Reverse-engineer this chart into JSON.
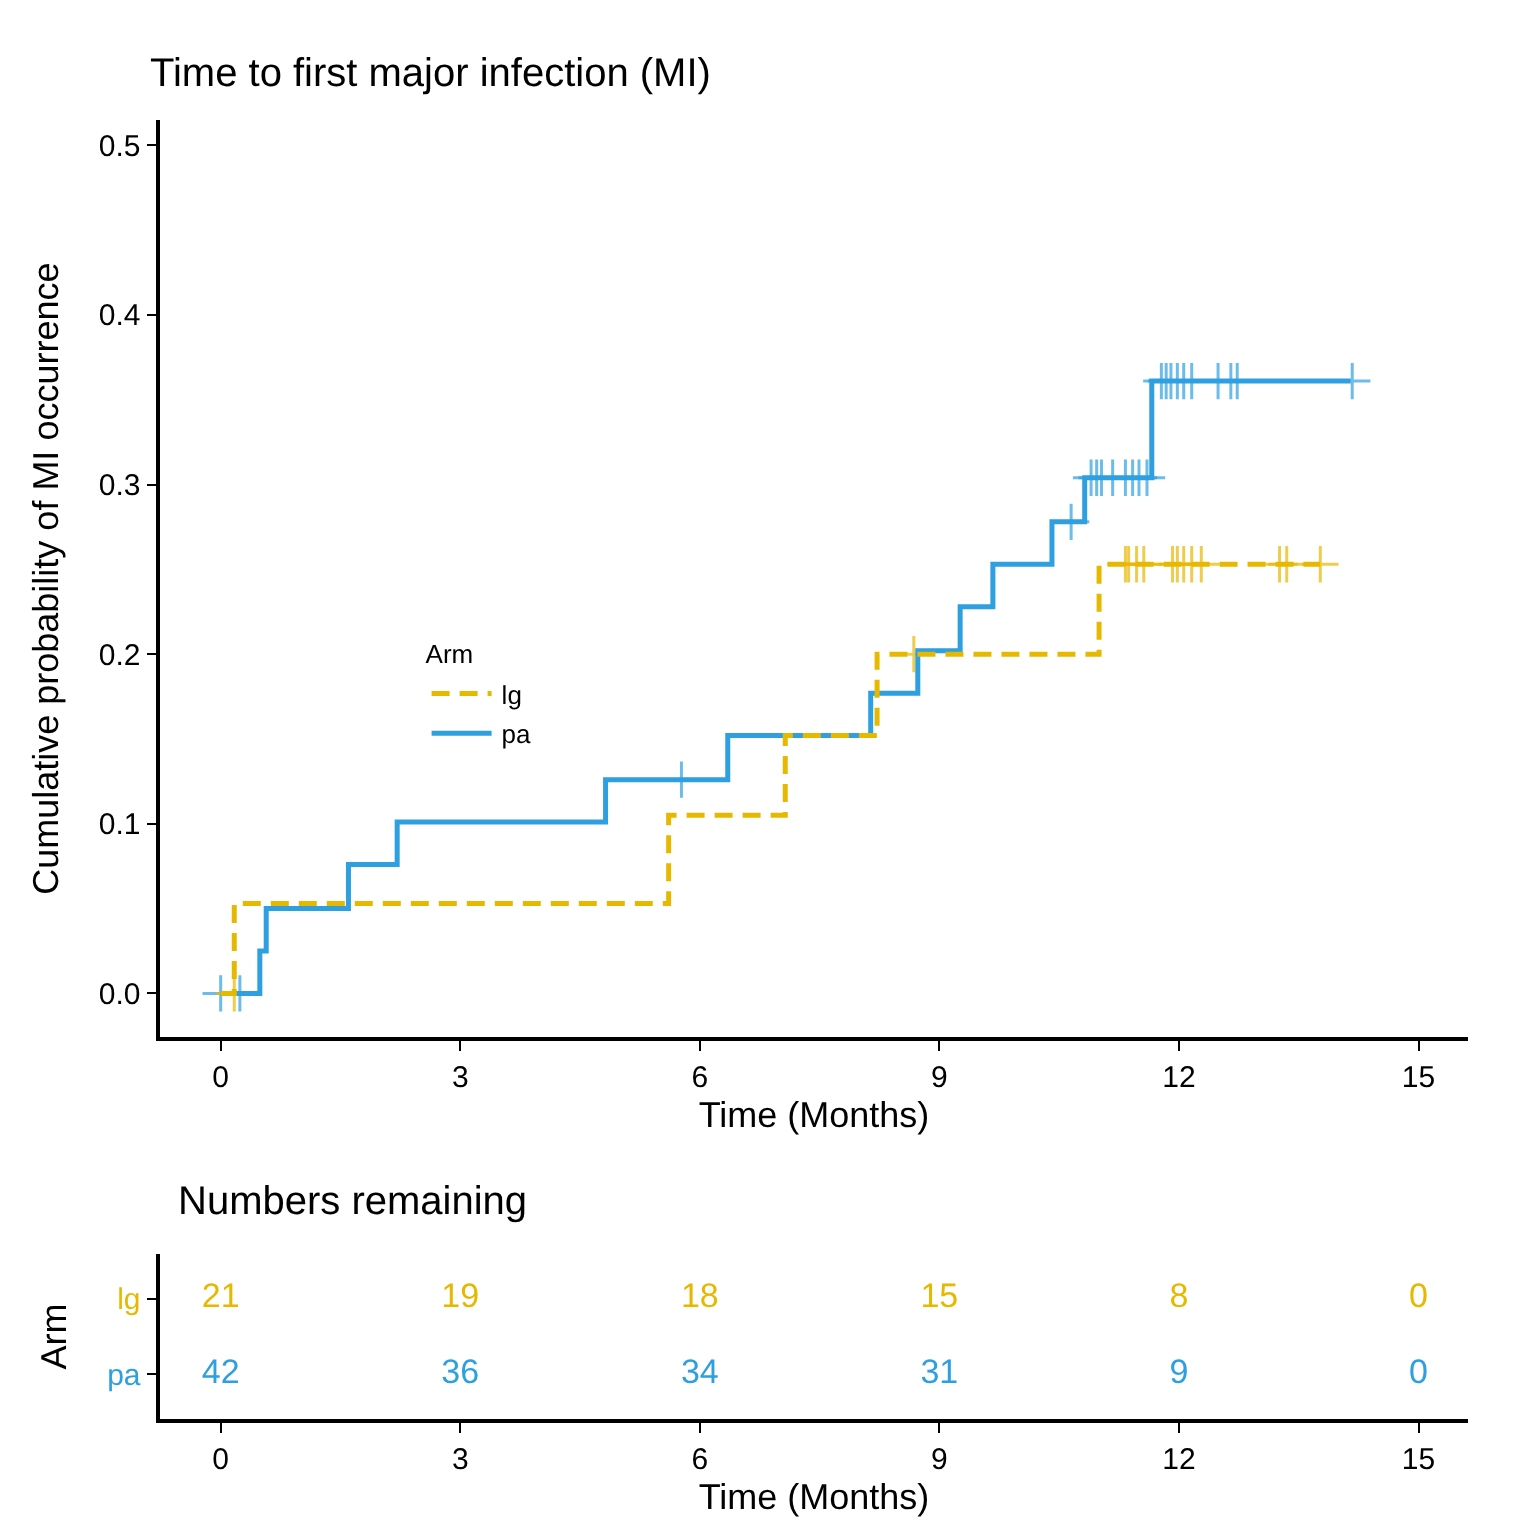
{
  "chart_data": [
    {
      "type": "step",
      "title": "Time to first major infection (MI)",
      "xlabel": "Time (Months)",
      "ylabel": "Cumulative probability of MI occurrence",
      "legend": "left",
      "legend_title": "Arm",
      "xlim": [
        -0.76,
        15.62
      ],
      "xticks": [
        0,
        3,
        6,
        9,
        12,
        15
      ],
      "ylim": [
        -0.026,
        0.515
      ],
      "yticks": [
        {
          "value": 0,
          "label": "0.0"
        },
        0.1,
        0.2,
        0.3,
        0.4,
        0.5
      ],
      "series": [
        {
          "name": "lg",
          "color": "#e7b800",
          "line_style": "dashed",
          "x": [
            0,
            0.17,
            5.61,
            7.07,
            8.22,
            11.0,
            13.77
          ],
          "values": [
            0,
            0.053,
            0.105,
            0.152,
            0.2,
            0.253,
            0.253
          ]
        },
        {
          "name": "pa",
          "color": "#2e9fdf",
          "line_style": "solid",
          "x": [
            0,
            0.49,
            0.57,
            1.6,
            2.21,
            4.82,
            6.35,
            8.14,
            8.73,
            9.26,
            9.67,
            10.41,
            10.82,
            11.66,
            14.15
          ],
          "values": [
            0,
            0.025,
            0.05,
            0.076,
            0.101,
            0.126,
            0.152,
            0.177,
            0.202,
            0.228,
            0.253,
            0.278,
            0.304,
            0.361,
            0.361
          ]
        },
        {
          "type": "scatter",
          "marker": "cross",
          "color": "#e7b800",
          "x": [
            0.17,
            8.68,
            11.33,
            11.37,
            11.47,
            11.56,
            11.92,
            11.98,
            12.06,
            12.16,
            12.28,
            13.26,
            13.35,
            13.77
          ],
          "values": [
            0,
            0.2,
            0.253,
            0.253,
            0.253,
            0.253,
            0.253,
            0.253,
            0.253,
            0.253,
            0.253,
            0.253,
            0.253,
            0.253
          ]
        },
        {
          "type": "scatter",
          "marker": "cross",
          "color": "#2e9fdf",
          "x": [
            0,
            0.24,
            5.77,
            10.65,
            10.9,
            10.97,
            11.03,
            11.17,
            11.33,
            11.42,
            11.5,
            11.6,
            11.78,
            11.84,
            11.9,
            11.98,
            12.06,
            12.16,
            12.49,
            12.65,
            12.73,
            14.17
          ],
          "values": [
            0,
            0,
            0.126,
            0.278,
            0.304,
            0.304,
            0.304,
            0.304,
            0.304,
            0.304,
            0.304,
            0.304,
            0.361,
            0.361,
            0.361,
            0.361,
            0.361,
            0.361,
            0.361,
            0.361,
            0.361,
            0.361
          ]
        }
      ]
    },
    {
      "type": "heatmap",
      "title": "Numbers remaining",
      "xlabel": "Time (Months)",
      "ylabel": "Arm",
      "x": [
        0,
        3,
        6,
        9,
        12,
        15
      ],
      "xlim": [
        -0.76,
        15.62
      ],
      "xticks": [
        0,
        3,
        6,
        9,
        12,
        15
      ],
      "data_labels": true,
      "y_categories": [
        "lg",
        "pa"
      ],
      "colors": [
        "#e7b800",
        "#2e9fdf"
      ],
      "cells": [
        [
          21,
          19,
          18,
          15,
          8,
          0
        ],
        [
          42,
          36,
          34,
          31,
          9,
          0
        ]
      ]
    }
  ]
}
